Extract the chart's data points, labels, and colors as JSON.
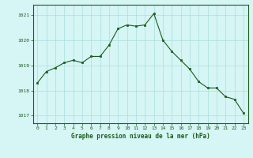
{
  "x": [
    0,
    1,
    2,
    3,
    4,
    5,
    6,
    7,
    8,
    9,
    10,
    11,
    12,
    13,
    14,
    15,
    16,
    17,
    18,
    19,
    20,
    21,
    22,
    23
  ],
  "y": [
    1018.3,
    1018.75,
    1018.9,
    1019.1,
    1019.2,
    1019.1,
    1019.35,
    1019.35,
    1019.8,
    1020.45,
    1020.6,
    1020.55,
    1020.6,
    1021.05,
    1020.0,
    1019.55,
    1019.2,
    1018.85,
    1018.35,
    1018.1,
    1018.1,
    1017.75,
    1017.65,
    1017.1
  ],
  "line_color": "#1a5c1a",
  "marker_color": "#1a5c1a",
  "bg_color": "#d6f5f5",
  "grid_color": "#aadddd",
  "axis_color": "#1a5c1a",
  "title": "Graphe pression niveau de la mer (hPa)",
  "title_color": "#1a5c1a",
  "xlabel_ticks": [
    "0",
    "1",
    "2",
    "3",
    "4",
    "5",
    "6",
    "7",
    "8",
    "9",
    "10",
    "11",
    "12",
    "13",
    "14",
    "15",
    "16",
    "17",
    "18",
    "19",
    "20",
    "21",
    "22",
    "23"
  ],
  "ytick_labels": [
    "1017",
    "1018",
    "1019",
    "1020",
    "1021"
  ],
  "ylim": [
    1016.7,
    1021.4
  ],
  "xlim": [
    -0.5,
    23.5
  ],
  "tick_color": "#1a5c1a",
  "border_color": "#1a5c1a",
  "figsize": [
    3.2,
    2.0
  ],
  "dpi": 100
}
